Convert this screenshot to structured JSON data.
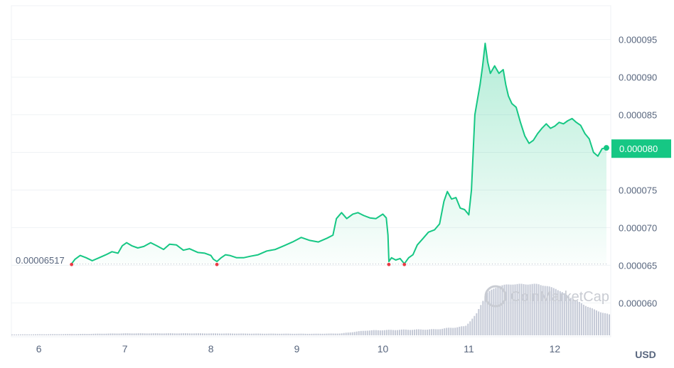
{
  "chart_data": {
    "type": "area",
    "x_axis": {
      "ticks": [
        "6",
        "7",
        "8",
        "9",
        "10",
        "11",
        "12"
      ],
      "range": [
        5.68,
        12.65
      ]
    },
    "y_axis": {
      "ticks": [
        "0.000060",
        "0.000065",
        "0.000070",
        "0.000075",
        "0.000080",
        "0.000085",
        "0.000090",
        "0.000095"
      ],
      "tick_values": [
        6e-05,
        6.5e-05,
        7e-05,
        7.5e-05,
        8e-05,
        8.5e-05,
        9e-05,
        9.5e-05
      ],
      "range": [
        5.55e-05,
        9.95e-05
      ]
    },
    "currency": "USD",
    "current_price_label": "0.000080",
    "current_price": 8.05e-05,
    "baseline_label": "0.00006517",
    "baseline": 6.517e-05,
    "watermark": "CoinMarketCap",
    "colors": {
      "up": "#16c784",
      "down": "#ea3943",
      "volume": "#c4c9d6",
      "grid": "#eff2f5",
      "text": "#58667e"
    },
    "price_series": {
      "name": "",
      "points": [
        [
          6.38,
          6.52e-05
        ],
        [
          6.42,
          6.58e-05
        ],
        [
          6.48,
          6.63e-05
        ],
        [
          6.55,
          6.6e-05
        ],
        [
          6.62,
          6.56e-05
        ],
        [
          6.7,
          6.6e-05
        ],
        [
          6.78,
          6.64e-05
        ],
        [
          6.85,
          6.68e-05
        ],
        [
          6.92,
          6.66e-05
        ],
        [
          6.97,
          6.76e-05
        ],
        [
          7.02,
          6.8e-05
        ],
        [
          7.08,
          6.76e-05
        ],
        [
          7.15,
          6.73e-05
        ],
        [
          7.22,
          6.75e-05
        ],
        [
          7.3,
          6.8e-05
        ],
        [
          7.37,
          6.76e-05
        ],
        [
          7.45,
          6.71e-05
        ],
        [
          7.52,
          6.78e-05
        ],
        [
          7.6,
          6.77e-05
        ],
        [
          7.68,
          6.7e-05
        ],
        [
          7.75,
          6.72e-05
        ],
        [
          7.85,
          6.67e-05
        ],
        [
          7.93,
          6.66e-05
        ],
        [
          8.0,
          6.63e-05
        ],
        [
          8.03,
          6.58e-05
        ],
        [
          8.07,
          6.55e-05
        ],
        [
          8.12,
          6.6e-05
        ],
        [
          8.17,
          6.64e-05
        ],
        [
          8.22,
          6.63e-05
        ],
        [
          8.3,
          6.6e-05
        ],
        [
          8.38,
          6.6e-05
        ],
        [
          8.46,
          6.62e-05
        ],
        [
          8.55,
          6.64e-05
        ],
        [
          8.65,
          6.69e-05
        ],
        [
          8.75,
          6.71e-05
        ],
        [
          8.85,
          6.76e-05
        ],
        [
          8.95,
          6.81e-05
        ],
        [
          9.05,
          6.87e-05
        ],
        [
          9.15,
          6.83e-05
        ],
        [
          9.25,
          6.81e-05
        ],
        [
          9.35,
          6.86e-05
        ],
        [
          9.42,
          6.9e-05
        ],
        [
          9.46,
          7.12e-05
        ],
        [
          9.52,
          7.2e-05
        ],
        [
          9.58,
          7.12e-05
        ],
        [
          9.65,
          7.18e-05
        ],
        [
          9.71,
          7.2e-05
        ],
        [
          9.78,
          7.16e-05
        ],
        [
          9.85,
          7.13e-05
        ],
        [
          9.92,
          7.12e-05
        ],
        [
          10.0,
          7.18e-05
        ],
        [
          10.04,
          7.13e-05
        ],
        [
          10.06,
          6.9e-05
        ],
        [
          10.07,
          6.55e-05
        ],
        [
          10.1,
          6.6e-05
        ],
        [
          10.15,
          6.57e-05
        ],
        [
          10.2,
          6.59e-05
        ],
        [
          10.25,
          6.52e-05
        ],
        [
          10.3,
          6.6e-05
        ],
        [
          10.35,
          6.64e-05
        ],
        [
          10.4,
          6.77e-05
        ],
        [
          10.47,
          6.86e-05
        ],
        [
          10.53,
          6.94e-05
        ],
        [
          10.6,
          6.97e-05
        ],
        [
          10.66,
          7.05e-05
        ],
        [
          10.71,
          7.35e-05
        ],
        [
          10.75,
          7.48e-05
        ],
        [
          10.8,
          7.38e-05
        ],
        [
          10.85,
          7.4e-05
        ],
        [
          10.9,
          7.26e-05
        ],
        [
          10.95,
          7.24e-05
        ],
        [
          10.98,
          7.2e-05
        ],
        [
          11.0,
          7.17e-05
        ],
        [
          11.03,
          7.5e-05
        ],
        [
          11.05,
          8e-05
        ],
        [
          11.07,
          8.5e-05
        ],
        [
          11.1,
          8.7e-05
        ],
        [
          11.13,
          8.9e-05
        ],
        [
          11.16,
          9.15e-05
        ],
        [
          11.19,
          9.45e-05
        ],
        [
          11.22,
          9.2e-05
        ],
        [
          11.25,
          9.05e-05
        ],
        [
          11.3,
          9.15e-05
        ],
        [
          11.35,
          9.05e-05
        ],
        [
          11.4,
          9.1e-05
        ],
        [
          11.43,
          8.9e-05
        ],
        [
          11.46,
          8.75e-05
        ],
        [
          11.5,
          8.65e-05
        ],
        [
          11.55,
          8.6e-05
        ],
        [
          11.6,
          8.4e-05
        ],
        [
          11.65,
          8.22e-05
        ],
        [
          11.7,
          8.12e-05
        ],
        [
          11.75,
          8.16e-05
        ],
        [
          11.8,
          8.25e-05
        ],
        [
          11.85,
          8.32e-05
        ],
        [
          11.9,
          8.38e-05
        ],
        [
          11.95,
          8.32e-05
        ],
        [
          12.0,
          8.35e-05
        ],
        [
          12.05,
          8.4e-05
        ],
        [
          12.1,
          8.38e-05
        ],
        [
          12.15,
          8.42e-05
        ],
        [
          12.2,
          8.45e-05
        ],
        [
          12.25,
          8.4e-05
        ],
        [
          12.3,
          8.36e-05
        ],
        [
          12.35,
          8.25e-05
        ],
        [
          12.4,
          8.18e-05
        ],
        [
          12.45,
          8e-05
        ],
        [
          12.5,
          7.95e-05
        ],
        [
          12.55,
          8.05e-05
        ],
        [
          12.6,
          8.06e-05
        ]
      ]
    },
    "down_markers": [
      [
        6.38,
        6.52e-05
      ],
      [
        8.07,
        6.52e-05
      ],
      [
        10.07,
        6.52e-05
      ],
      [
        10.25,
        6.52e-05
      ]
    ],
    "volume_series": {
      "name": "",
      "points": [
        [
          5.68,
          0.6
        ],
        [
          6.4,
          0.9
        ],
        [
          7.0,
          1.4
        ],
        [
          7.8,
          1.4
        ],
        [
          8.5,
          1.2
        ],
        [
          9.2,
          1.1
        ],
        [
          9.5,
          1.3
        ],
        [
          9.8,
          3.4
        ],
        [
          10.2,
          3.9
        ],
        [
          10.6,
          4.2
        ],
        [
          10.95,
          6.3
        ],
        [
          11.08,
          15.0
        ],
        [
          11.2,
          30.0
        ],
        [
          11.35,
          35.0
        ],
        [
          11.5,
          36.0
        ],
        [
          11.8,
          36.0
        ],
        [
          12.0,
          33.0
        ],
        [
          12.25,
          24.0
        ],
        [
          12.45,
          18.0
        ],
        [
          12.65,
          14.0
        ]
      ]
    }
  }
}
